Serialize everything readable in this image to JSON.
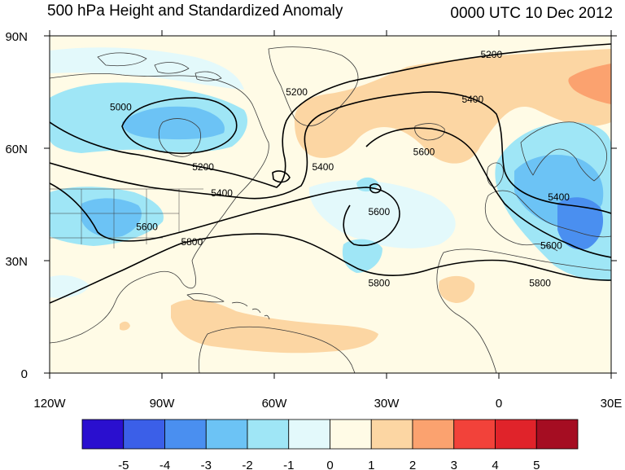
{
  "header": {
    "title": "500 hPa Height and Standardized Anomaly",
    "valid_time": "0000 UTC 10 Dec 2012"
  },
  "map": {
    "lon_range": [
      -120,
      30
    ],
    "lat_range": [
      0,
      90
    ],
    "lon_ticks": [
      {
        "value": -120,
        "label": "120W"
      },
      {
        "value": -90,
        "label": "90W"
      },
      {
        "value": -60,
        "label": "60W"
      },
      {
        "value": -30,
        "label": "30W"
      },
      {
        "value": 0,
        "label": "0"
      },
      {
        "value": 30,
        "label": "30E"
      }
    ],
    "lat_ticks": [
      {
        "value": 90,
        "label": "90N"
      },
      {
        "value": 60,
        "label": "60N"
      },
      {
        "value": 30,
        "label": "30N"
      },
      {
        "value": 0,
        "label": "0"
      }
    ],
    "colors": {
      "land_outline": "#3a3a3a",
      "contour": "#000000",
      "neutral": "#fffbe6"
    }
  },
  "contours": {
    "labels": [
      {
        "text": "5000",
        "lon": -101,
        "lat": 71
      },
      {
        "text": "5200",
        "lon": -79,
        "lat": 55
      },
      {
        "text": "5200",
        "lon": -54,
        "lat": 75
      },
      {
        "text": "5200",
        "lon": -2,
        "lat": 85
      },
      {
        "text": "5400",
        "lon": -74,
        "lat": 48
      },
      {
        "text": "5400",
        "lon": -47,
        "lat": 55
      },
      {
        "text": "5400",
        "lon": -7,
        "lat": 73
      },
      {
        "text": "5400",
        "lon": 16,
        "lat": 47
      },
      {
        "text": "5600",
        "lon": -94,
        "lat": 39
      },
      {
        "text": "5600",
        "lon": -32,
        "lat": 43
      },
      {
        "text": "5600",
        "lon": -20,
        "lat": 59
      },
      {
        "text": "5600",
        "lon": 14,
        "lat": 34
      },
      {
        "text": "5800",
        "lon": -82,
        "lat": 35
      },
      {
        "text": "5800",
        "lon": -32,
        "lat": 24
      },
      {
        "text": "5800",
        "lon": 11,
        "lat": 24
      }
    ]
  },
  "legend": {
    "levels": [
      {
        "label": "-5",
        "color": "#2a0fcf"
      },
      {
        "label": "-4",
        "color": "#3b5fe8"
      },
      {
        "label": "-3",
        "color": "#4a8ff0"
      },
      {
        "label": "-2",
        "color": "#6cc3f5"
      },
      {
        "label": "-1",
        "color": "#9fe6f6"
      },
      {
        "label": "0",
        "color": "#e3f9fb"
      },
      {
        "label": "1",
        "color": "#fffbe6"
      },
      {
        "label": "2",
        "color": "#fcd6a3"
      },
      {
        "label": "3",
        "color": "#fba26f"
      },
      {
        "label": "4",
        "color": "#f2423a"
      },
      {
        "label": "5",
        "color": "#e0232a"
      },
      {
        "label": "",
        "color": "#a50d22"
      }
    ]
  }
}
